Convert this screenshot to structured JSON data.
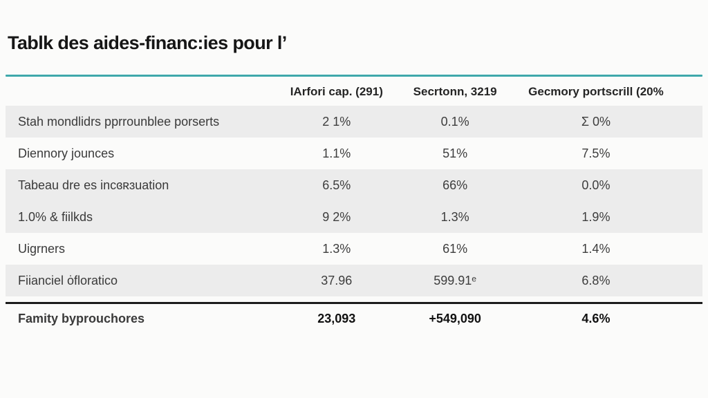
{
  "colors": {
    "accent": "#3fa8ab",
    "row_shade": "#ececec",
    "background": "#fbfbfa"
  },
  "chart_data": {
    "type": "table",
    "title": "Tablk des aides-financ:ies pour l’",
    "columns": [
      "IArfori cap. (291)",
      "Secrtonn, 3219",
      "Gecmory portscrill (20%"
    ],
    "rows": [
      {
        "label": "Stah mondlidrs pprrounblee porserts",
        "values": [
          "2 1%",
          "0.1%",
          "Ʃ 0%"
        ]
      },
      {
        "label": "Diennory jounces",
        "values": [
          "1.1%",
          "51%",
          "7.5%"
        ]
      },
      {
        "label": "Tabeau dre es incɞʀɜuation",
        "values": [
          "6.5%",
          "66%",
          "0.0%"
        ]
      },
      {
        "label": "1.0% & fiilkds",
        "values": [
          "9 2%",
          "1.3%",
          "1.9%"
        ]
      },
      {
        "label": "Uigrners",
        "values": [
          "1.3%",
          "61%",
          "1.4%"
        ]
      },
      {
        "label": "Fiianciel ȯfloratico",
        "values": [
          "37.96",
          "599.91ᵉ",
          "6.8%"
        ]
      }
    ],
    "footer_row": {
      "label": "Famity byprouchores",
      "values": [
        "23,093",
        "+549,090",
        "4.6%"
      ]
    },
    "layout": {
      "grid": "off",
      "row_striping": "rows 1, 3, 4, 6 shaded gray",
      "header_rule": "teal accent line above header",
      "footer_rule": "thick black line above footer row"
    }
  }
}
